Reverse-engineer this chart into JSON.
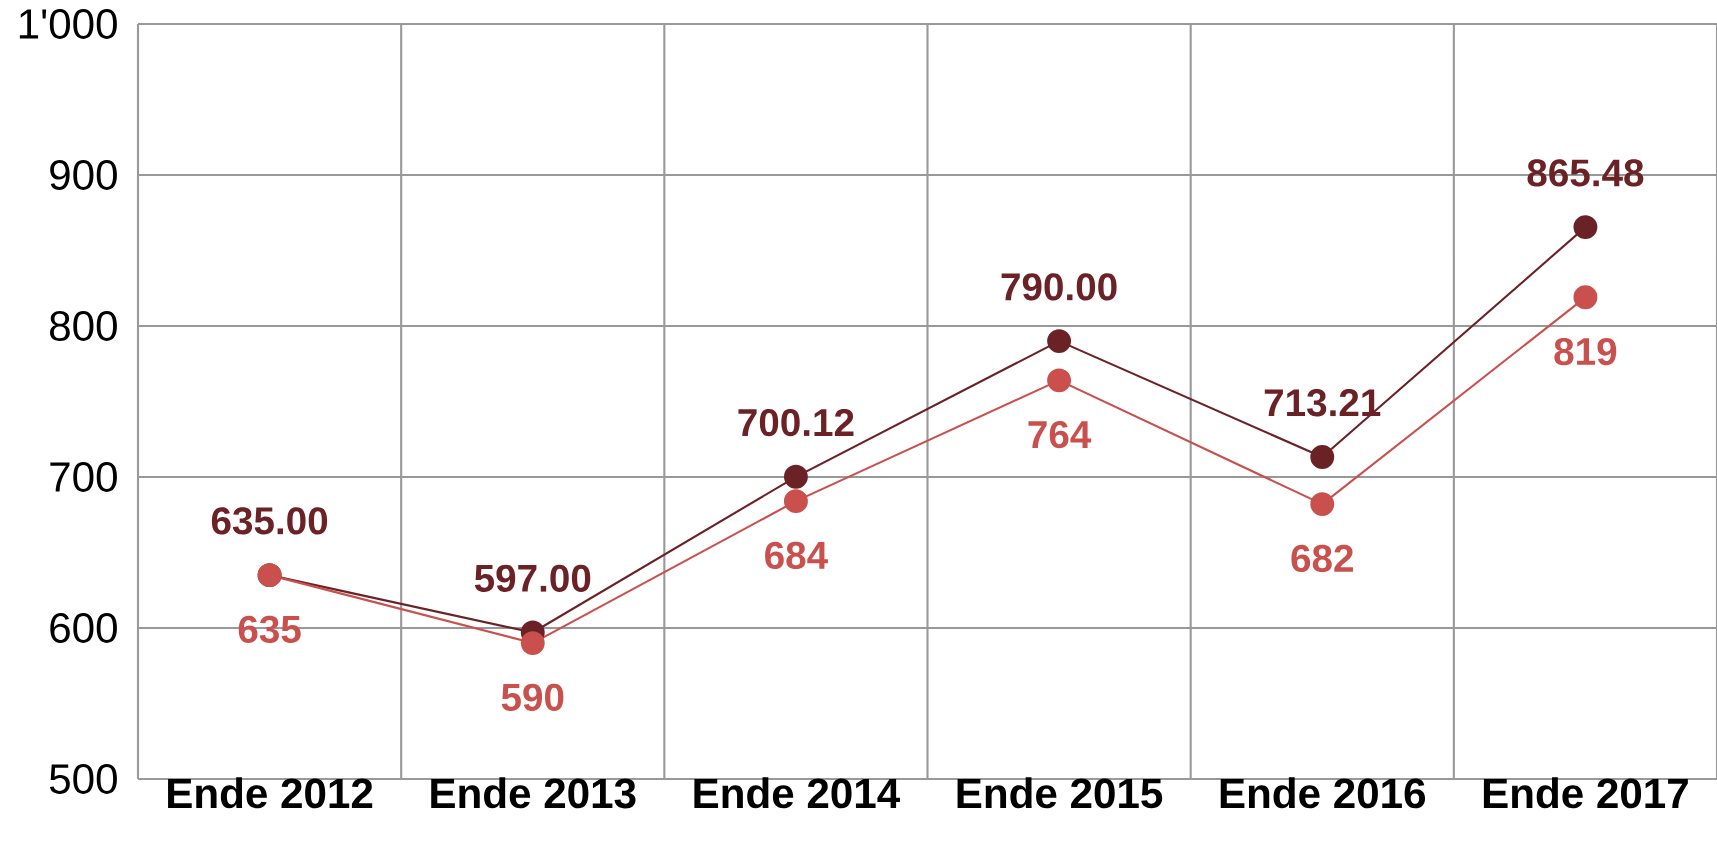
{
  "chart_data": {
    "type": "line",
    "categories": [
      "Ende 2012",
      "Ende 2013",
      "Ende 2014",
      "Ende 2015",
      "Ende 2016",
      "Ende 2017"
    ],
    "series": [
      {
        "color": "#6b2226",
        "values": [
          635,
          597,
          700.12,
          790,
          713.21,
          865.48
        ],
        "value_labels": [
          "635.00",
          "597.00",
          "700.12",
          "790.00",
          "713.21",
          "865.48"
        ]
      },
      {
        "color": "#c9504d",
        "values": [
          635,
          590,
          684,
          764,
          682,
          819
        ],
        "value_labels": [
          "635",
          "590",
          "684",
          "764",
          "682",
          "819"
        ]
      }
    ],
    "ylim": [
      500,
      1000
    ],
    "yticks": [
      500,
      600,
      700,
      800,
      900,
      {
        "value": 1000,
        "label": "1'000"
      }
    ],
    "grid": true,
    "marker": "circle"
  }
}
